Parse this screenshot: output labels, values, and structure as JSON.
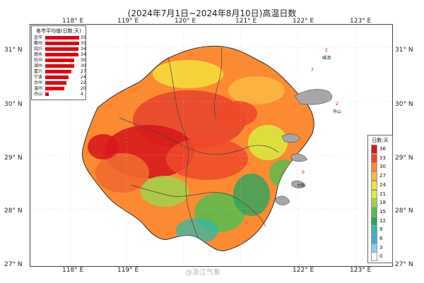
{
  "title": "(2024年7月1日~2024年8月10日)高温日数",
  "axes": {
    "lon_labels": [
      "118° E",
      "119° E",
      "120° E",
      "121° E",
      "122° E",
      "123° E"
    ],
    "lat_labels": [
      "31° N",
      "30° N",
      "29° N",
      "28° N",
      "27° N"
    ]
  },
  "city_chart": {
    "title": "各市平均值(日数:天)",
    "cities": [
      "金华",
      "衢州",
      "绍兴",
      "丽水",
      "杭州",
      "湖州",
      "嘉兴",
      "宁波",
      "台州",
      "温州",
      "舟山"
    ],
    "values": [
      35,
      35,
      34,
      34,
      30,
      30,
      27,
      24,
      22,
      20,
      4
    ]
  },
  "scale": {
    "title": "日数:天",
    "levels": [
      {
        "label": "36",
        "color": "#d7191c"
      },
      {
        "label": "33",
        "color": "#ee4a2a"
      },
      {
        "label": "30",
        "color": "#fb8a32"
      },
      {
        "label": "27",
        "color": "#fcb640"
      },
      {
        "label": "24",
        "color": "#f5df3c"
      },
      {
        "label": "21",
        "color": "#d7ec3f"
      },
      {
        "label": "18",
        "color": "#9fd24a"
      },
      {
        "label": "15",
        "color": "#55bd4e"
      },
      {
        "label": "12",
        "color": "#2aa55d"
      },
      {
        "label": "9",
        "color": "#33b7a6"
      },
      {
        "label": "6",
        "color": "#45a9d4"
      },
      {
        "label": "3",
        "color": "#7fd3f0"
      },
      {
        "label": "0",
        "color": "#ffffff"
      }
    ]
  },
  "map_labels": {
    "shengsi": "嵊泗",
    "zhoushan": "舟山",
    "dachen": "大陈",
    "red_2": "2",
    "red_7": "7",
    "red_0": "0"
  },
  "watermark": "@浙江气象",
  "colors": {
    "gray": "#a6a6a6",
    "border": "#333333"
  }
}
